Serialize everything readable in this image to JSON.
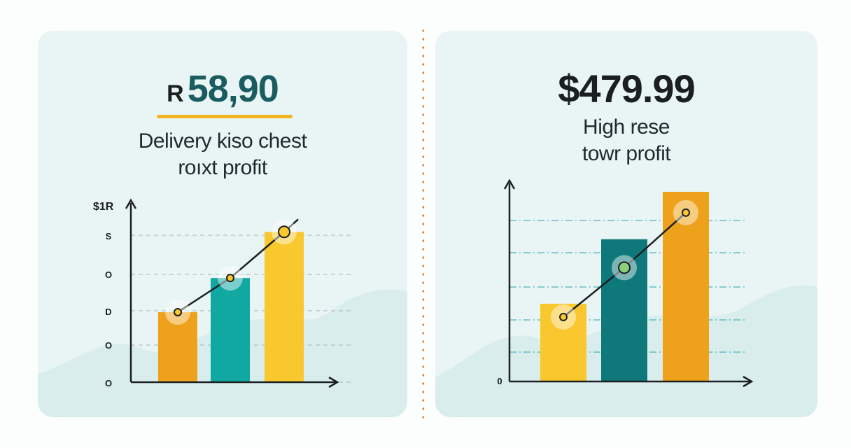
{
  "colors": {
    "panel_bg": "#e9f5f5",
    "mountain": "#d6ebeb",
    "orange": "#eea21b",
    "teal": "#12a8a2",
    "dark_teal": "#0f787a",
    "yellow": "#f8c82e",
    "accent_underline": "#f1b51f",
    "headline_dark": "#1b1f22",
    "headline_teal": "#1a5c60",
    "divider": "#d9823d"
  },
  "left_card": {
    "headline_prefix": "R",
    "headline_value": "58,90",
    "subtitle_line1": "Delivery kiso chest",
    "subtitle_line2": "roıxt profit"
  },
  "right_card": {
    "headline": "$479.99",
    "subtitle_line1": "High rese",
    "subtitle_line2": "towr profit"
  },
  "chart_data": [
    {
      "type": "bar",
      "ylabel": "$1R",
      "y_tick_labels": [
        "S",
        "O",
        "D",
        "O",
        "O"
      ],
      "ylim": [
        0,
        100
      ],
      "grid": "dashed horizontal",
      "categories": [
        "",
        "",
        ""
      ],
      "values": [
        41,
        61,
        88
      ],
      "bar_colors": [
        "#eea21b",
        "#12a8a2",
        "#f8c82e"
      ],
      "trend_line": [
        41,
        61,
        88
      ]
    },
    {
      "type": "bar",
      "y_tick_labels": [
        "0"
      ],
      "ylim": [
        0,
        100
      ],
      "grid": "dash-dot horizontal",
      "categories": [
        "",
        "",
        ""
      ],
      "values": [
        41,
        75,
        100
      ],
      "bar_colors": [
        "#f8c82e",
        "#0f787a",
        "#eea21b"
      ],
      "trend_line": [
        34,
        60,
        89
      ]
    }
  ]
}
